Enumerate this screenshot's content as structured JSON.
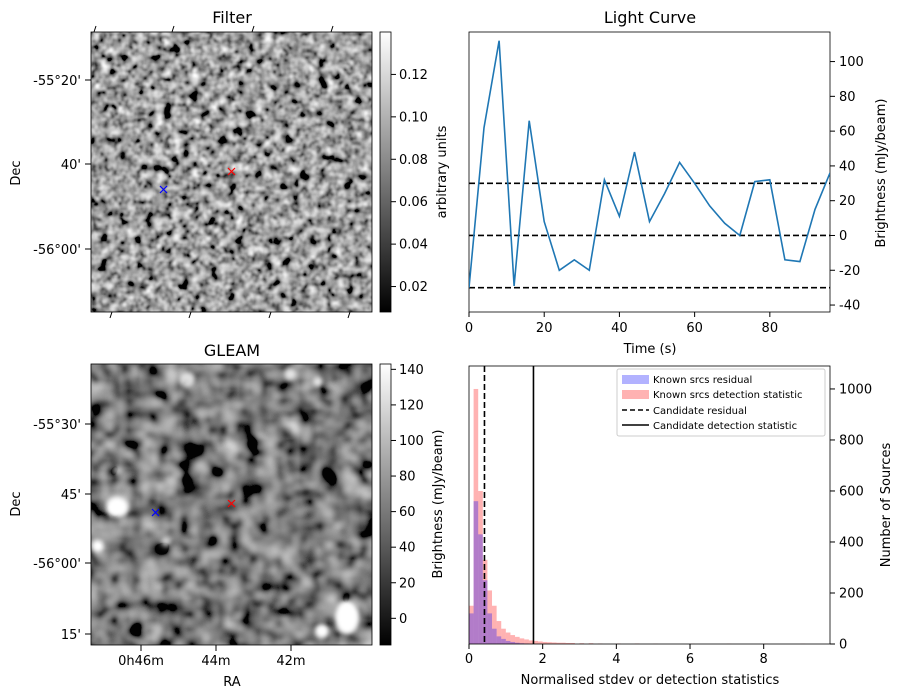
{
  "chart_data": [
    {
      "type": "heatmap",
      "title": "Filter",
      "xlabel": "",
      "ylabel": "Dec",
      "y_ticks": [
        "-55°20'",
        "40'",
        "-56°00'"
      ],
      "colorbar": {
        "label": "arbitrary units",
        "ticks": [
          "0.02",
          "0.04",
          "0.06",
          "0.08",
          "0.10",
          "0.12"
        ],
        "tick_values": [
          0.02,
          0.04,
          0.06,
          0.08,
          0.1,
          0.12
        ],
        "range": [
          0.008,
          0.14
        ],
        "colormap": "gray"
      },
      "markers": [
        {
          "name": "candidate",
          "symbol": "x",
          "color": "#ff0000"
        },
        {
          "name": "reference",
          "symbol": "x",
          "color": "#0000ff"
        }
      ]
    },
    {
      "type": "line",
      "title": "Light Curve",
      "xlabel": "Time (s)",
      "ylabel": "Brightness (mJy/beam)",
      "xlim": [
        0,
        96
      ],
      "ylim": [
        -44,
        117
      ],
      "x_ticks": [
        0,
        20,
        40,
        60,
        80
      ],
      "y_ticks": [
        -40,
        -20,
        0,
        20,
        40,
        60,
        80,
        100
      ],
      "series": [
        {
          "name": "light curve",
          "color": "#1f77b4",
          "x": [
            0,
            4,
            8,
            12,
            16,
            20,
            24,
            28,
            32,
            36,
            40,
            44,
            48,
            52,
            56,
            60,
            64,
            68,
            72,
            76,
            80,
            84,
            88,
            92,
            96
          ],
          "y": [
            -30,
            62,
            112,
            -29,
            66,
            8,
            -20,
            -14,
            -20,
            32,
            11,
            48,
            8,
            24,
            42,
            30,
            17,
            7,
            0,
            31,
            32,
            -14,
            -15,
            15,
            36
          ]
        }
      ],
      "hlines": [
        {
          "y": 30,
          "style": "dashed",
          "color": "#000000"
        },
        {
          "y": 0,
          "style": "dashed",
          "color": "#000000"
        },
        {
          "y": -30,
          "style": "dashed",
          "color": "#000000"
        }
      ]
    },
    {
      "type": "heatmap",
      "title": "GLEAM",
      "xlabel": "RA",
      "ylabel": "Dec",
      "x_ticks": [
        "0h46m",
        "44m",
        "42m"
      ],
      "y_ticks": [
        "-55°30'",
        "45'",
        "-56°00'",
        "15'"
      ],
      "colorbar": {
        "label": "Brightness (mJy/beam)",
        "ticks": [
          "0",
          "20",
          "40",
          "60",
          "80",
          "100",
          "120",
          "140"
        ],
        "tick_values": [
          0,
          20,
          40,
          60,
          80,
          100,
          120,
          140
        ],
        "range": [
          -15,
          143
        ],
        "colormap": "gray"
      },
      "markers": [
        {
          "name": "candidate",
          "symbol": "x",
          "color": "#ff0000"
        },
        {
          "name": "reference",
          "symbol": "x",
          "color": "#0000ff"
        }
      ]
    },
    {
      "type": "bar",
      "title": "",
      "xlabel": "Normalised stdev or detection statistics",
      "ylabel": "Number of Sources",
      "xlim": [
        0,
        9.8
      ],
      "ylim": [
        0,
        1090
      ],
      "x_ticks": [
        0,
        2,
        4,
        6,
        8
      ],
      "y_ticks": [
        0,
        200,
        400,
        600,
        800,
        1000
      ],
      "bin_width": 0.125,
      "series": [
        {
          "name": "Known srcs residual",
          "color": "#0000ff",
          "opacity": 0.3,
          "bin_starts": [
            0,
            0.125,
            0.25,
            0.375,
            0.5,
            0.625,
            0.75,
            0.875,
            1.0,
            1.125,
            1.25,
            1.375,
            1.5
          ],
          "values": [
            120,
            560,
            430,
            250,
            120,
            60,
            30,
            20,
            12,
            8,
            5,
            3,
            2
          ]
        },
        {
          "name": "Known srcs detection statistic",
          "color": "#ff0000",
          "opacity": 0.3,
          "bin_starts": [
            0,
            0.125,
            0.25,
            0.375,
            0.5,
            0.625,
            0.75,
            0.875,
            1.0,
            1.125,
            1.25,
            1.375,
            1.5,
            1.625,
            1.75,
            1.875,
            2.0,
            2.125,
            2.25,
            2.375,
            2.5,
            2.625,
            2.75,
            3.0,
            3.25,
            3.5,
            4.0,
            4.5,
            5.0,
            6.0,
            7.0,
            8.0,
            9.0
          ],
          "values": [
            150,
            1000,
            600,
            330,
            210,
            150,
            90,
            60,
            45,
            35,
            28,
            22,
            18,
            14,
            12,
            10,
            8,
            7,
            6,
            5,
            5,
            4,
            4,
            3,
            3,
            2,
            2,
            2,
            1,
            1,
            1,
            1,
            1
          ]
        }
      ],
      "vlines": [
        {
          "name": "Candidate residual",
          "x": 0.42,
          "style": "dashed",
          "color": "#000000"
        },
        {
          "name": "Candidate detection statistic",
          "x": 1.75,
          "style": "solid",
          "color": "#000000"
        }
      ],
      "legend": {
        "position": "top-right",
        "entries": [
          "Known srcs residual",
          "Known srcs detection statistic",
          "Candidate residual",
          "Candidate detection statistic"
        ]
      }
    }
  ]
}
